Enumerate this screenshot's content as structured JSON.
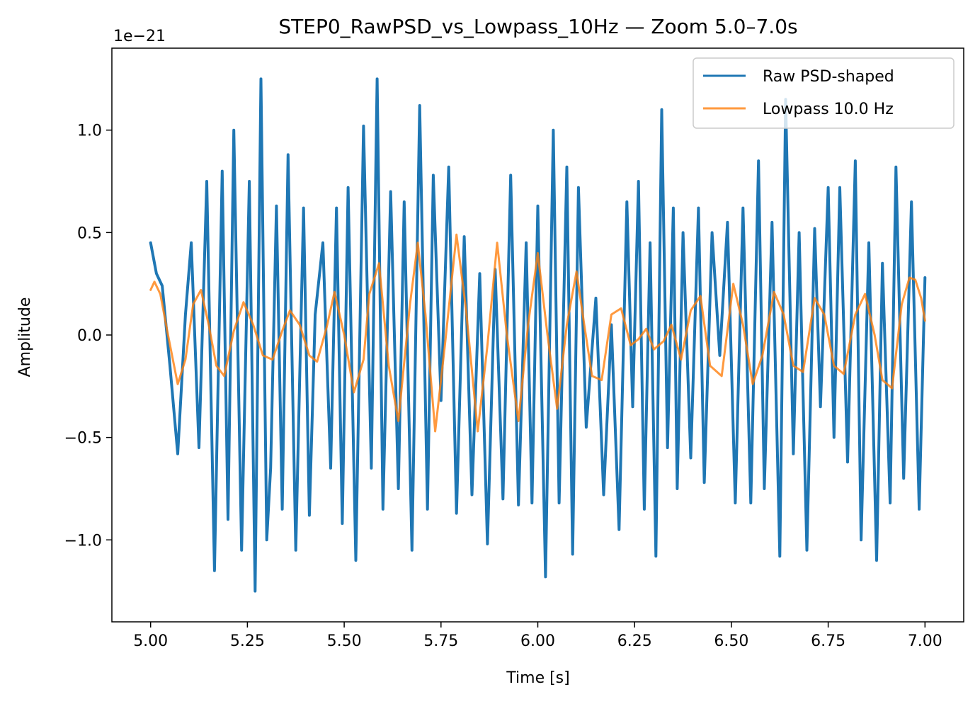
{
  "chart_data": {
    "type": "line",
    "title": "STEP0_RawPSD_vs_Lowpass_10Hz — Zoom 5.0–7.0s",
    "xlabel": "Time [s]",
    "ylabel": "Amplitude",
    "y_offset_label": "1e−21",
    "xlim": [
      4.9,
      7.1
    ],
    "ylim": [
      -1.4,
      1.4
    ],
    "xticks": [
      5.0,
      5.25,
      5.5,
      5.75,
      6.0,
      6.25,
      6.5,
      6.75,
      7.0
    ],
    "xtick_labels": [
      "5.00",
      "5.25",
      "5.50",
      "5.75",
      "6.00",
      "6.25",
      "6.50",
      "6.75",
      "7.00"
    ],
    "yticks": [
      -1.0,
      -0.5,
      0.0,
      0.5,
      1.0
    ],
    "ytick_labels": [
      "−1.0",
      "−0.5",
      "0.0",
      "0.5",
      "1.0"
    ],
    "grid": false,
    "legend_position": "top-right",
    "series": [
      {
        "name": "Raw PSD-shaped",
        "color": "#1f77b4",
        "x": [
          5.0,
          5.015,
          5.03,
          5.05,
          5.07,
          5.09,
          5.105,
          5.125,
          5.145,
          5.165,
          5.185,
          5.2,
          5.215,
          5.235,
          5.255,
          5.27,
          5.285,
          5.3,
          5.31,
          5.325,
          5.34,
          5.355,
          5.375,
          5.395,
          5.41,
          5.425,
          5.445,
          5.465,
          5.48,
          5.495,
          5.51,
          5.53,
          5.55,
          5.57,
          5.585,
          5.6,
          5.62,
          5.64,
          5.655,
          5.675,
          5.695,
          5.715,
          5.73,
          5.75,
          5.77,
          5.79,
          5.81,
          5.83,
          5.85,
          5.87,
          5.89,
          5.91,
          5.93,
          5.95,
          5.97,
          5.985,
          6.0,
          6.02,
          6.04,
          6.055,
          6.075,
          6.09,
          6.105,
          6.125,
          6.15,
          6.17,
          6.19,
          6.21,
          6.23,
          6.245,
          6.26,
          6.275,
          6.29,
          6.305,
          6.32,
          6.335,
          6.35,
          6.36,
          6.375,
          6.395,
          6.415,
          6.43,
          6.45,
          6.47,
          6.49,
          6.51,
          6.53,
          6.55,
          6.57,
          6.585,
          6.605,
          6.625,
          6.64,
          6.66,
          6.675,
          6.695,
          6.715,
          6.73,
          6.75,
          6.765,
          6.78,
          6.8,
          6.82,
          6.835,
          6.855,
          6.875,
          6.89,
          6.91,
          6.925,
          6.945,
          6.965,
          6.985,
          7.0
        ],
        "values": [
          0.45,
          0.3,
          0.24,
          -0.15,
          -0.58,
          0.1,
          0.45,
          -0.55,
          0.75,
          -1.15,
          0.8,
          -0.9,
          1.0,
          -1.05,
          0.75,
          -1.25,
          1.25,
          -1.0,
          -0.65,
          0.63,
          -0.85,
          0.88,
          -1.05,
          0.62,
          -0.88,
          0.1,
          0.45,
          -0.65,
          0.62,
          -0.92,
          0.72,
          -1.1,
          1.02,
          -0.65,
          1.25,
          -0.85,
          0.7,
          -0.75,
          0.65,
          -1.05,
          1.12,
          -0.85,
          0.78,
          -0.32,
          0.82,
          -0.87,
          0.48,
          -0.78,
          0.3,
          -1.02,
          0.32,
          -0.8,
          0.78,
          -0.83,
          0.45,
          -0.82,
          0.63,
          -1.18,
          1.0,
          -0.82,
          0.82,
          -1.07,
          0.72,
          -0.45,
          0.18,
          -0.78,
          0.05,
          -0.95,
          0.65,
          -0.35,
          0.75,
          -0.85,
          0.45,
          -1.08,
          1.1,
          -0.55,
          0.62,
          -0.75,
          0.5,
          -0.6,
          0.62,
          -0.72,
          0.5,
          -0.1,
          0.55,
          -0.82,
          0.62,
          -0.82,
          0.85,
          -0.75,
          0.55,
          -1.08,
          1.15,
          -0.58,
          0.5,
          -1.05,
          0.52,
          -0.35,
          0.72,
          -0.5,
          0.72,
          -0.62,
          0.85,
          -1.0,
          0.45,
          -1.1,
          0.35,
          -0.82,
          0.82,
          -0.7,
          0.65,
          -0.85,
          0.28
        ]
      },
      {
        "name": "Lowpass 10.0 Hz",
        "color": "#ff7f0e",
        "x": [
          5.0,
          5.01,
          5.025,
          5.045,
          5.07,
          5.09,
          5.11,
          5.13,
          5.15,
          5.17,
          5.19,
          5.215,
          5.24,
          5.265,
          5.29,
          5.315,
          5.34,
          5.36,
          5.385,
          5.41,
          5.43,
          5.455,
          5.475,
          5.5,
          5.525,
          5.55,
          5.565,
          5.59,
          5.615,
          5.64,
          5.67,
          5.69,
          5.71,
          5.735,
          5.76,
          5.79,
          5.815,
          5.845,
          5.87,
          5.895,
          5.92,
          5.95,
          5.975,
          6.0,
          6.025,
          6.05,
          6.075,
          6.1,
          6.12,
          6.14,
          6.165,
          6.19,
          6.215,
          6.24,
          6.26,
          6.28,
          6.3,
          6.325,
          6.345,
          6.37,
          6.395,
          6.42,
          6.445,
          6.475,
          6.505,
          6.53,
          6.555,
          6.58,
          6.61,
          6.635,
          6.66,
          6.685,
          6.715,
          6.74,
          6.765,
          6.79,
          6.82,
          6.845,
          6.87,
          6.89,
          6.915,
          6.94,
          6.96,
          6.975,
          6.99,
          7.0
        ],
        "values": [
          0.22,
          0.26,
          0.2,
          0.0,
          -0.24,
          -0.12,
          0.15,
          0.22,
          0.05,
          -0.15,
          -0.2,
          0.02,
          0.16,
          0.05,
          -0.1,
          -0.12,
          0.02,
          0.12,
          0.05,
          -0.1,
          -0.13,
          0.04,
          0.21,
          0.0,
          -0.28,
          -0.12,
          0.2,
          0.35,
          -0.15,
          -0.42,
          0.15,
          0.45,
          0.1,
          -0.47,
          -0.05,
          0.49,
          0.12,
          -0.47,
          -0.05,
          0.45,
          0.0,
          -0.42,
          0.05,
          0.4,
          0.0,
          -0.36,
          0.05,
          0.31,
          0.05,
          -0.2,
          -0.22,
          0.1,
          0.13,
          -0.05,
          -0.02,
          0.03,
          -0.07,
          -0.03,
          0.05,
          -0.12,
          0.12,
          0.19,
          -0.15,
          -0.2,
          0.25,
          0.05,
          -0.24,
          -0.1,
          0.21,
          0.1,
          -0.15,
          -0.18,
          0.18,
          0.1,
          -0.15,
          -0.19,
          0.1,
          0.2,
          0.0,
          -0.22,
          -0.26,
          0.15,
          0.28,
          0.27,
          0.18,
          0.07
        ]
      }
    ]
  }
}
